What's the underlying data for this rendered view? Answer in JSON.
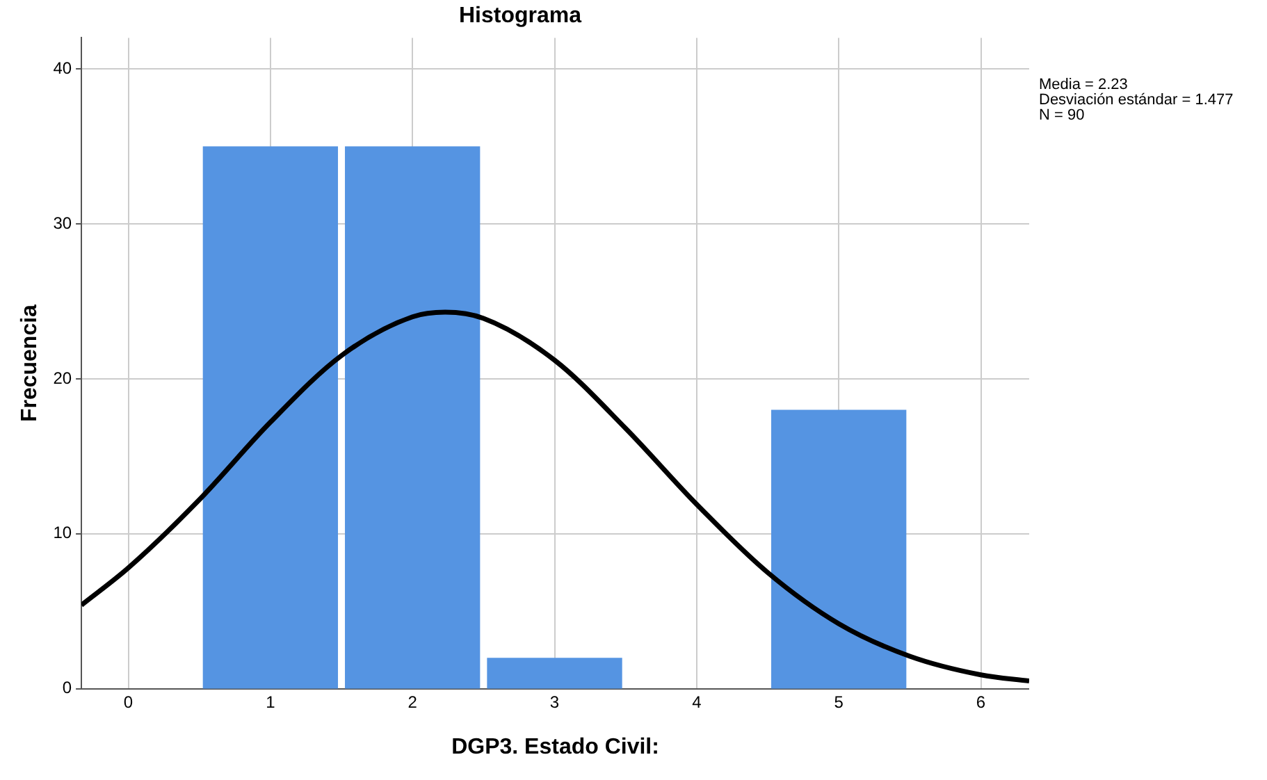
{
  "chart_data": {
    "type": "histogram",
    "title": "Histograma",
    "xlabel": "DGP3. Estado Civil:",
    "ylabel": "Frecuencia",
    "bins": [
      0.5,
      1.5,
      2.5,
      3.5,
      4.5,
      5.5
    ],
    "values": [
      35,
      35,
      2,
      0,
      18
    ],
    "color": "#5594e2",
    "series": [
      {
        "type": "line",
        "color": "#000000",
        "x": [
          -0.33,
          0,
          0.5,
          1,
          1.5,
          2,
          2.23,
          2.5,
          3,
          3.5,
          4,
          4.5,
          5,
          5.5,
          6,
          6.34
        ],
        "values": [
          5.4,
          7.8,
          12.2,
          17.2,
          21.5,
          24.0,
          24.3,
          23.9,
          21.2,
          16.8,
          11.9,
          7.5,
          4.2,
          2.1,
          0.9,
          0.5
        ]
      }
    ],
    "xlim": [
      -0.33,
      6.34
    ],
    "xticks": [
      0,
      1,
      2,
      3,
      4,
      5,
      6
    ],
    "ylim": [
      0,
      42
    ],
    "yticks": [
      0,
      10,
      20,
      30,
      40
    ],
    "grid": true,
    "legend": false,
    "marker": "none",
    "annotations": [
      "Media = 2.23",
      "Desviación estándar = 1.477",
      "N = 90"
    ]
  }
}
